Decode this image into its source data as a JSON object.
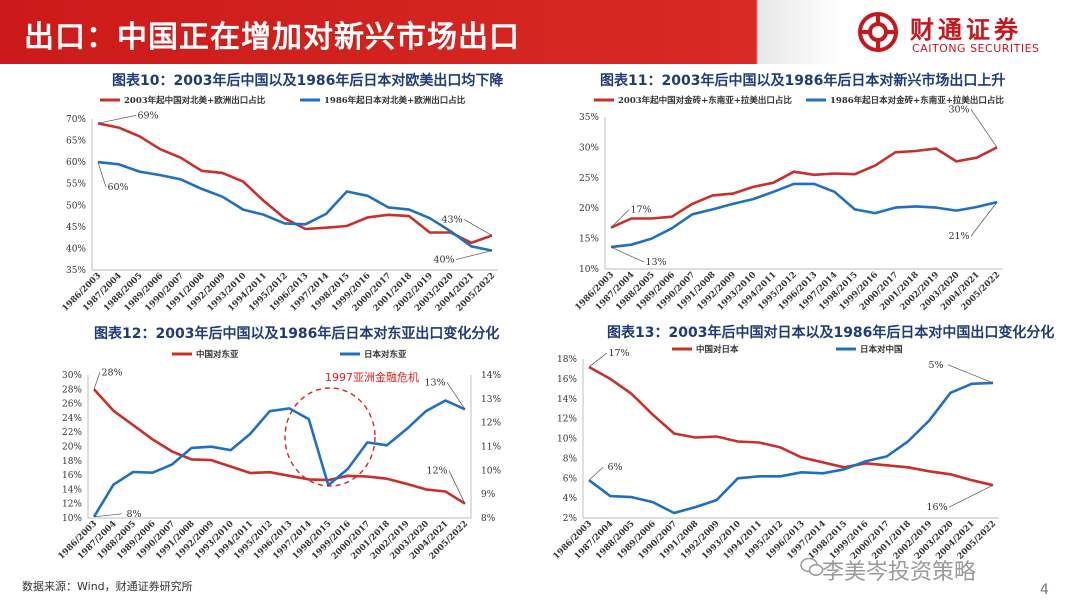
{
  "header": {
    "title": "出口：中国正在增加对新兴市场出口"
  },
  "logo": {
    "name_cn": "财通证券",
    "name_en": "CAITONG SECURITIES"
  },
  "colors": {
    "red": "#c8302a",
    "blue": "#2070c0",
    "accent": "#cc1a1a",
    "title": "#1f3c78"
  },
  "footer": {
    "source": "数据来源：Wind，财通证券研究所"
  },
  "watermark": {
    "text": "李美岑投资策略",
    "icon": "wechat-icon"
  },
  "page": {
    "number": "4"
  },
  "x_categories_a": [
    "1986/2003",
    "1987/2004",
    "1988/2005",
    "1989/2006",
    "1990/2007",
    "1991/2008",
    "1992/2009",
    "1993/2010",
    "1994/2011",
    "1995/2012",
    "1996/2013",
    "1997/2014",
    "1998/2015",
    "1999/2016",
    "2000/2017",
    "2001/2018",
    "2002/2019",
    "2003/2020",
    "2004/2021",
    "2005/2022"
  ],
  "x_categories_b": [
    "1986/2003",
    "1987/2004",
    "1988/2005",
    "1989/2006",
    "1990/2007",
    "1991/2008",
    "1992/2009",
    "1993/2010",
    "1994/2011",
    "1995/2012",
    "1996/2013",
    "1997/2014",
    "1998/2015",
    "1999/2016",
    "2000/2017",
    "2001/2018",
    "2002/2019",
    "2003/2020",
    "2004/2021",
    "2005/2022"
  ],
  "chart_data": [
    {
      "type": "line",
      "title": "图表10：2003年后中国以及1986年后日本对欧美出口均下降",
      "ylim": [
        0.35,
        0.7
      ],
      "yticks": [
        "35%",
        "40%",
        "45%",
        "50%",
        "55%",
        "60%",
        "65%",
        "70%"
      ],
      "series": [
        {
          "name": "2003年起中国对北美+欧洲出口占比",
          "color": "red",
          "values": [
            0.69,
            0.68,
            0.66,
            0.63,
            0.61,
            0.58,
            0.575,
            0.555,
            0.51,
            0.47,
            0.445,
            0.448,
            0.452,
            0.472,
            0.478,
            0.475,
            0.437,
            0.437,
            0.413,
            0.43
          ]
        },
        {
          "name": "1986年起日本对北美+欧洲出口占比",
          "color": "blue",
          "values": [
            0.6,
            0.595,
            0.578,
            0.57,
            0.56,
            0.538,
            0.52,
            0.49,
            0.478,
            0.458,
            0.456,
            0.48,
            0.532,
            0.522,
            0.495,
            0.49,
            0.47,
            0.44,
            0.405,
            0.395
          ]
        }
      ],
      "annotations": [
        {
          "text": "69%"
        },
        {
          "text": "60%"
        },
        {
          "text": "43%"
        },
        {
          "text": "40%"
        }
      ]
    },
    {
      "type": "line",
      "title": "图表11：2003年后中国以及1986年后日本对新兴市场出口上升",
      "ylim": [
        0.1,
        0.35
      ],
      "yticks": [
        "10%",
        "15%",
        "20%",
        "25%",
        "30%",
        "35%"
      ],
      "series": [
        {
          "name": "2003年起中国对金砖+东南亚+拉美出口占比",
          "color": "red",
          "values": [
            0.168,
            0.183,
            0.183,
            0.186,
            0.207,
            0.221,
            0.224,
            0.235,
            0.242,
            0.26,
            0.255,
            0.257,
            0.256,
            0.27,
            0.292,
            0.294,
            0.298,
            0.277,
            0.283,
            0.3
          ]
        },
        {
          "name": "1986年起日本对金砖+东南亚+拉美出口占比",
          "color": "blue",
          "values": [
            0.136,
            0.14,
            0.15,
            0.167,
            0.19,
            0.198,
            0.207,
            0.215,
            0.227,
            0.24,
            0.24,
            0.227,
            0.198,
            0.192,
            0.201,
            0.203,
            0.201,
            0.196,
            0.202,
            0.21
          ]
        }
      ],
      "annotations": [
        {
          "text": "17%"
        },
        {
          "text": "13%"
        },
        {
          "text": "30%"
        },
        {
          "text": "21%"
        }
      ]
    },
    {
      "type": "line",
      "title": "图表12：2003年后中国以及1986年后日本对东亚出口变化分化",
      "ylim": [
        0.1,
        0.3
      ],
      "ylim_right": [
        0.08,
        0.14
      ],
      "yticks": [
        "10%",
        "12%",
        "14%",
        "16%",
        "18%",
        "20%",
        "22%",
        "24%",
        "26%",
        "28%",
        "30%"
      ],
      "yticks_right": [
        "8%",
        "9%",
        "10%",
        "11%",
        "12%",
        "13%",
        "14%"
      ],
      "series": [
        {
          "name": "中国对东亚",
          "color": "red",
          "axis": "left",
          "values": [
            0.28,
            0.25,
            0.23,
            0.21,
            0.193,
            0.182,
            0.181,
            0.172,
            0.163,
            0.164,
            0.159,
            0.154,
            0.153,
            0.159,
            0.158,
            0.155,
            0.148,
            0.14,
            0.137,
            0.12
          ]
        },
        {
          "name": "日本对东亚",
          "color": "blue",
          "axis": "right",
          "values": [
            0.0805,
            0.094,
            0.0993,
            0.099,
            0.1025,
            0.1094,
            0.1099,
            0.1085,
            0.1153,
            0.1248,
            0.126,
            0.1215,
            0.0937,
            0.1006,
            0.1117,
            0.1105,
            0.1172,
            0.1248,
            0.1293,
            0.1256
          ]
        }
      ],
      "annotations": [
        {
          "text": "28%"
        },
        {
          "text": "8%"
        },
        {
          "text": "12%"
        },
        {
          "text": "13%"
        },
        {
          "text": "1997亚洲金融危机"
        }
      ]
    },
    {
      "type": "line",
      "title": "图表13：2003年后中国对日本以及1986年后日本对中国出口变化分化",
      "ylim": [
        0.02,
        0.18
      ],
      "yticks": [
        "2%",
        "4%",
        "6%",
        "8%",
        "10%",
        "12%",
        "14%",
        "16%",
        "18%"
      ],
      "series": [
        {
          "name": "中国对日本",
          "color": "red",
          "values": [
            0.172,
            0.16,
            0.145,
            0.124,
            0.105,
            0.101,
            0.102,
            0.097,
            0.096,
            0.091,
            0.081,
            0.076,
            0.071,
            0.075,
            0.073,
            0.071,
            0.067,
            0.064,
            0.058,
            0.053
          ]
        },
        {
          "name": "日本对中国",
          "color": "blue",
          "values": [
            0.058,
            0.042,
            0.041,
            0.036,
            0.025,
            0.031,
            0.038,
            0.06,
            0.062,
            0.062,
            0.066,
            0.065,
            0.069,
            0.077,
            0.082,
            0.097,
            0.118,
            0.146,
            0.155,
            0.156
          ]
        }
      ],
      "annotations": [
        {
          "text": "17%"
        },
        {
          "text": "6%"
        },
        {
          "text": "16%"
        },
        {
          "text": "5%"
        }
      ]
    }
  ]
}
